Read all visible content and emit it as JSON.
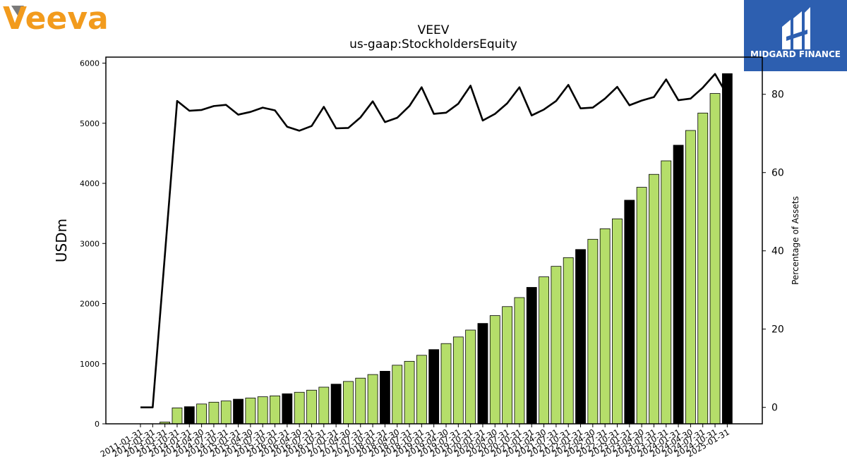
{
  "brand": {
    "company_logo_text": "Veeva",
    "company_logo_color": "#f29b1d",
    "badge_text": "MIDGARD FINANCE",
    "badge_color": "#2d5fb0"
  },
  "colors": {
    "bar_green": "#b5de6a",
    "bar_black": "#000000",
    "line": "#000000"
  },
  "chart_data": {
    "type": "bar",
    "title": "VEEV",
    "subtitle": "us-gaap:StockholdersEquity",
    "ylabel": "USDm",
    "y2label": "Percentage of Assets",
    "ylim": [
      0,
      6100
    ],
    "y2lim": [
      -4.2,
      89.5
    ],
    "yticks": [
      0,
      1000,
      2000,
      3000,
      4000,
      5000,
      6000
    ],
    "y2ticks": [
      0,
      20,
      40,
      60,
      80
    ],
    "grid": false,
    "categories": [
      "2011-01-31",
      "2012-01-31",
      "2013-01-31",
      "2013-10-31",
      "2014-01-31",
      "2014-04-30",
      "2014-07-31",
      "2014-10-31",
      "2015-01-31",
      "2015-04-30",
      "2015-07-31",
      "2015-10-31",
      "2016-01-31",
      "2016-04-30",
      "2016-07-31",
      "2016-10-31",
      "2017-01-31",
      "2017-04-30",
      "2017-07-31",
      "2017-10-31",
      "2018-01-31",
      "2018-04-30",
      "2018-07-31",
      "2018-10-31",
      "2019-01-31",
      "2019-04-30",
      "2019-07-31",
      "2019-10-31",
      "2020-01-31",
      "2020-04-30",
      "2020-07-31",
      "2020-10-31",
      "2021-01-31",
      "2021-04-30",
      "2021-07-31",
      "2021-10-31",
      "2022-01-31",
      "2022-04-30",
      "2022-07-31",
      "2022-10-31",
      "2023-01-31",
      "2023-04-30",
      "2023-07-31",
      "2023-10-31",
      "2024-01-31",
      "2024-04-30",
      "2024-07-31",
      "2024-10-31",
      "2025-01-31"
    ],
    "series": [
      {
        "name": "USDm",
        "kind": "bar",
        "values": [
          0,
          0,
          30,
          265,
          285,
          330,
          360,
          380,
          410,
          430,
          450,
          465,
          500,
          525,
          560,
          610,
          660,
          705,
          760,
          820,
          875,
          975,
          1040,
          1140,
          1235,
          1335,
          1445,
          1560,
          1670,
          1800,
          1950,
          2100,
          2270,
          2445,
          2620,
          2765,
          2900,
          3070,
          3245,
          3410,
          3720,
          3935,
          4150,
          4375,
          4635,
          4880,
          5170,
          5495,
          5825
        ],
        "highlight": [
          0,
          0,
          0,
          0,
          1,
          0,
          0,
          0,
          1,
          0,
          0,
          0,
          1,
          0,
          0,
          0,
          1,
          0,
          0,
          0,
          1,
          0,
          0,
          0,
          1,
          0,
          0,
          0,
          1,
          0,
          0,
          0,
          1,
          0,
          0,
          0,
          1,
          0,
          0,
          0,
          1,
          0,
          0,
          0,
          1,
          0,
          0,
          0,
          1
        ]
      },
      {
        "name": "Percentage of Assets",
        "kind": "line",
        "axis": "right",
        "values": [
          0,
          0,
          39,
          78.3,
          75.8,
          76,
          77,
          77.3,
          74.8,
          75.5,
          76.6,
          75.9,
          71.7,
          70.7,
          71.9,
          76.8,
          71.3,
          71.4,
          74.1,
          78.2,
          72.9,
          74.0,
          77.0,
          81.8,
          75.0,
          75.3,
          77.6,
          82.2,
          73.3,
          75.0,
          77.7,
          81.8,
          74.6,
          76.1,
          78.3,
          82.4,
          76.4,
          76.6,
          78.9,
          81.9,
          77.2,
          78.4,
          79.3,
          83.8,
          78.5,
          78.9,
          81.7,
          85.2,
          79.8
        ]
      }
    ]
  }
}
